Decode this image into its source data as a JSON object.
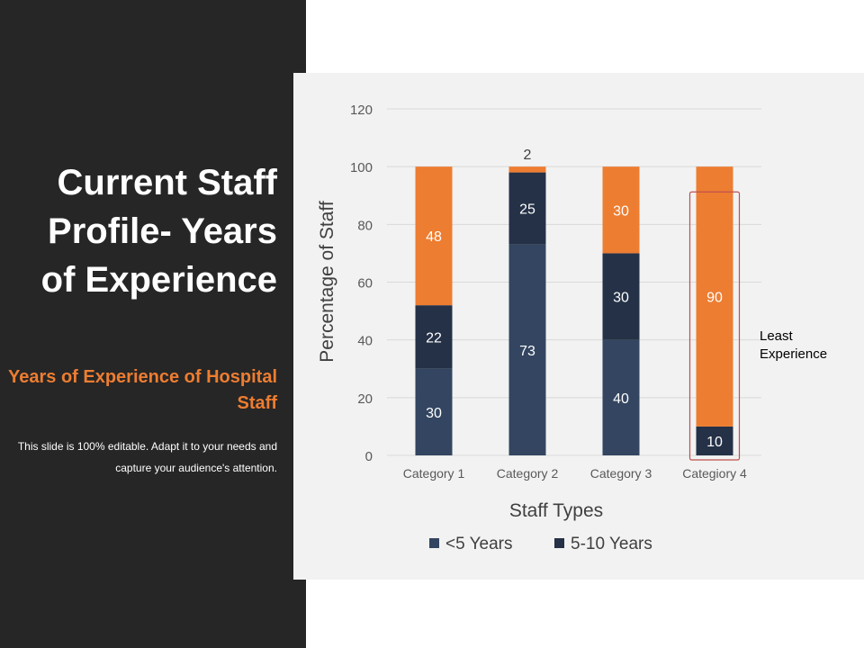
{
  "slide": {
    "title": "Current Staff Profile- Years of Experience",
    "subtitle": "Years of Experience of Hospital Staff",
    "description": "This slide is 100% editable. Adapt it to your needs and capture your audience's attention."
  },
  "colors": {
    "sidebar_bg": "#262626",
    "accent": "#ed7d31",
    "series_lt5": "#334560",
    "series_5to10": "#243147",
    "panel_bg": "#f2f2f2",
    "highlight": "#c0504d"
  },
  "chart_data": {
    "type": "bar",
    "stacked": true,
    "categories": [
      "Category 1",
      "Category 2",
      "Category 3",
      "Categiory 4"
    ],
    "series": [
      {
        "name": "<5 Years",
        "values": [
          30,
          73,
          40,
          0
        ],
        "labels": [
          "30",
          "73",
          "40",
          ""
        ],
        "color": "#334560"
      },
      {
        "name": "5-10 Years",
        "values": [
          22,
          25,
          30,
          10
        ],
        "labels": [
          "22",
          "25",
          "30",
          "10"
        ],
        "color": "#243147"
      },
      {
        "name": "",
        "values": [
          48,
          2,
          30,
          90
        ],
        "labels": [
          "48",
          "2",
          "30",
          "90"
        ],
        "color": "#ed7d31"
      }
    ],
    "xlabel": "Staff Types",
    "ylabel": "Percentage of Staff",
    "ylim": [
      0,
      120
    ],
    "yticks": [
      "0",
      "20",
      "40",
      "60",
      "80",
      "100",
      "120"
    ],
    "legend": [
      "<5 Years",
      "5-10 Years"
    ],
    "legend_position": "bottom",
    "annotation": {
      "text": "Least Experience",
      "category": 3
    }
  }
}
